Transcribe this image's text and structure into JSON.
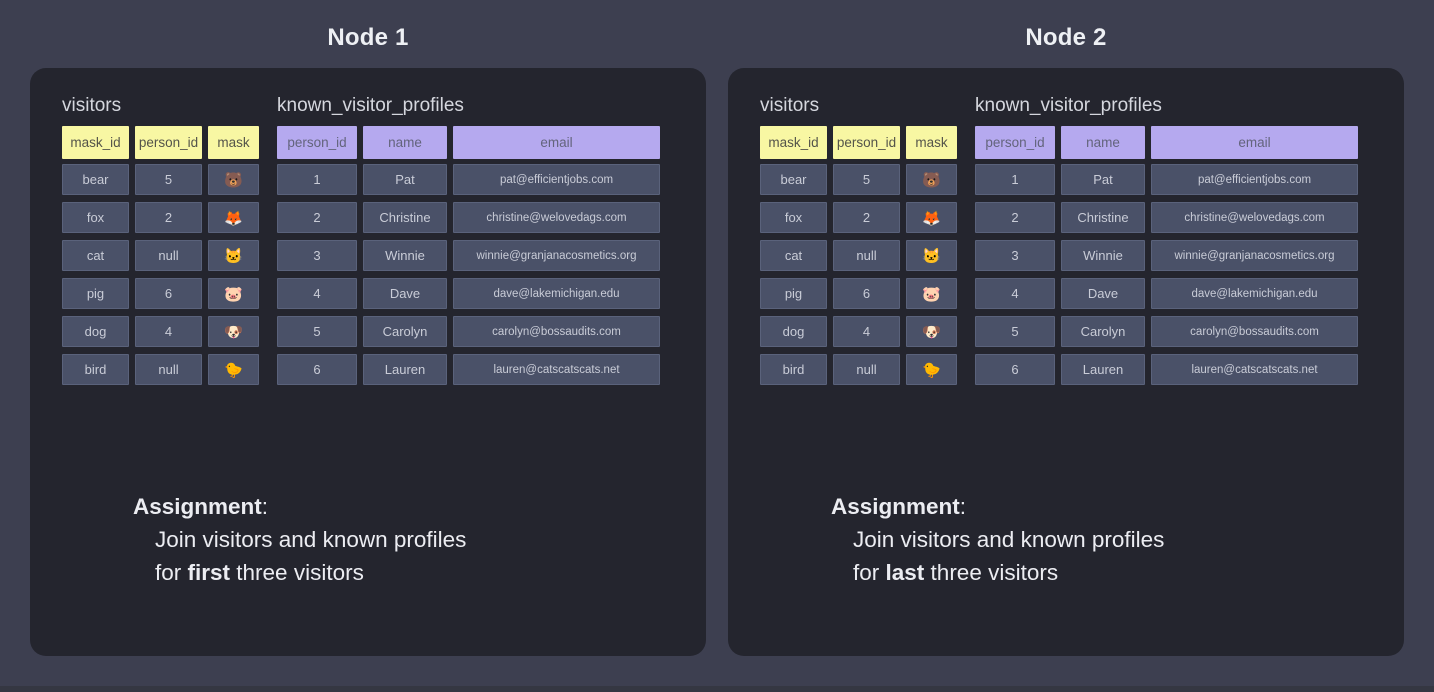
{
  "page": {
    "background": "#3d3f50",
    "panel_background": "#24252e",
    "cell_background": "#4a5168",
    "yellow_header_color": "#f8f7a3",
    "purple_header_color": "#b5a9ef"
  },
  "nodes": [
    {
      "title": "Node 1",
      "assignment": {
        "label": "Assignment",
        "colon": ":",
        "line2": "Join visitors and known profiles",
        "line3_prefix": "for ",
        "line3_keyword": "first",
        "line3_suffix": " three visitors"
      }
    },
    {
      "title": "Node 2",
      "assignment": {
        "label": "Assignment",
        "colon": ":",
        "line2": "Join visitors and known profiles",
        "line3_prefix": "for ",
        "line3_keyword": "last",
        "line3_suffix": " three visitors"
      }
    }
  ],
  "visitors": {
    "title": "visitors",
    "columns": [
      "mask_id",
      "person_id",
      "mask"
    ],
    "rows": [
      [
        "bear",
        "5",
        "🐻"
      ],
      [
        "fox",
        "2",
        "🦊"
      ],
      [
        "cat",
        "null",
        "🐱"
      ],
      [
        "pig",
        "6",
        "🐷"
      ],
      [
        "dog",
        "4",
        "🐶"
      ],
      [
        "bird",
        "null",
        "🐤"
      ]
    ]
  },
  "profiles": {
    "title": "known_visitor_profiles",
    "columns": [
      "person_id",
      "name",
      "email"
    ],
    "rows": [
      [
        "1",
        "Pat",
        "pat@efficientjobs.com"
      ],
      [
        "2",
        "Christine",
        "christine@welovedags.com"
      ],
      [
        "3",
        "Winnie",
        "winnie@granjanacosmetics.org"
      ],
      [
        "4",
        "Dave",
        "dave@lakemichigan.edu"
      ],
      [
        "5",
        "Carolyn",
        "carolyn@bossaudits.com"
      ],
      [
        "6",
        "Lauren",
        "lauren@catscatscats.net"
      ]
    ]
  }
}
